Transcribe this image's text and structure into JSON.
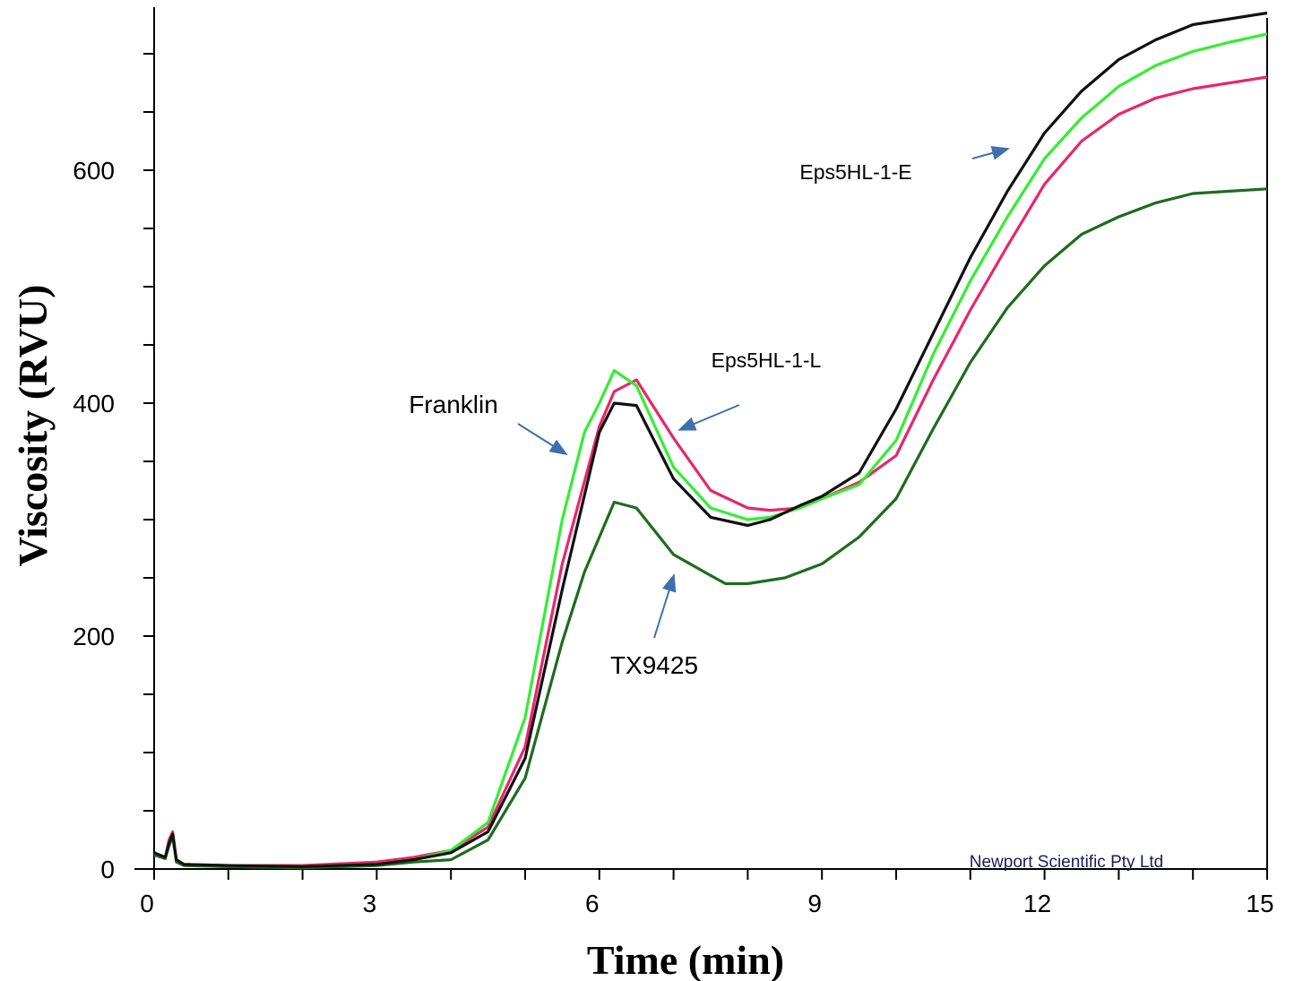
{
  "chart_data": {
    "type": "line",
    "xlabel": "Time (min)",
    "ylabel": "Viscosity (RVU)",
    "xlim": [
      0,
      15
    ],
    "ylim": [
      0,
      740
    ],
    "x_ticks": [
      0,
      3,
      6,
      9,
      12,
      15
    ],
    "y_ticks": [
      0,
      200,
      400,
      600
    ],
    "grid": false,
    "legend": "none",
    "watermark": "Newport Scientific Pty Ltd",
    "annotations": [
      {
        "text": "Eps5HL-1-E",
        "series": "Eps5HL-1-E"
      },
      {
        "text": "Eps5HL-1-L",
        "series": "Eps5HL-1-L"
      },
      {
        "text": "Franklin",
        "series": "Franklin"
      },
      {
        "text": "TX9425",
        "series": "TX9425"
      }
    ],
    "series": [
      {
        "name": "Eps5HL-1-E",
        "color": "#111111",
        "x": [
          0,
          0.15,
          0.2,
          0.25,
          0.3,
          0.4,
          1,
          2,
          3,
          3.5,
          4,
          4.5,
          5,
          5.5,
          6,
          6.2,
          6.5,
          7,
          7.5,
          8,
          8.3,
          8.7,
          9,
          9.5,
          10,
          10.5,
          11,
          11.5,
          12,
          12.5,
          13,
          13.5,
          14,
          14.5,
          15
        ],
        "y": [
          14,
          10,
          22,
          30,
          8,
          4,
          3,
          2,
          4,
          8,
          14,
          32,
          95,
          240,
          375,
          400,
          398,
          335,
          302,
          295,
          300,
          312,
          320,
          340,
          395,
          460,
          525,
          582,
          632,
          668,
          695,
          712,
          725,
          730,
          735
        ]
      },
      {
        "name": "Eps5HL-1-L",
        "color": "#e8266c",
        "x": [
          0,
          0.15,
          0.2,
          0.25,
          0.3,
          0.4,
          1,
          2,
          3,
          3.5,
          4,
          4.5,
          5,
          5.5,
          6,
          6.2,
          6.5,
          7,
          7.5,
          8,
          8.3,
          8.7,
          9,
          9.5,
          10,
          10.5,
          11,
          11.5,
          12,
          12.5,
          13,
          13.5,
          14,
          14.5,
          15
        ],
        "y": [
          14,
          10,
          25,
          32,
          8,
          4,
          3,
          3,
          6,
          10,
          16,
          36,
          105,
          262,
          380,
          410,
          420,
          370,
          325,
          310,
          308,
          310,
          318,
          332,
          355,
          420,
          480,
          535,
          588,
          625,
          648,
          662,
          670,
          675,
          680
        ]
      },
      {
        "name": "Franklin",
        "color": "#33ee33",
        "x": [
          0,
          0.15,
          0.2,
          0.25,
          0.3,
          0.4,
          1,
          2,
          3,
          3.5,
          4,
          4.5,
          5,
          5.5,
          5.8,
          6,
          6.2,
          6.5,
          7,
          7.5,
          8,
          8.3,
          8.7,
          9,
          9.5,
          10,
          10.5,
          11,
          11.5,
          12,
          12.5,
          13,
          13.5,
          14,
          14.5,
          15
        ],
        "y": [
          14,
          10,
          22,
          30,
          8,
          4,
          3,
          2,
          4,
          8,
          16,
          40,
          130,
          300,
          375,
          400,
          428,
          415,
          345,
          310,
          300,
          302,
          310,
          318,
          330,
          368,
          442,
          505,
          560,
          610,
          645,
          672,
          690,
          702,
          710,
          717
        ]
      },
      {
        "name": "TX9425",
        "color": "#1f6b1f",
        "x": [
          0,
          0.15,
          0.2,
          0.25,
          0.3,
          0.4,
          1,
          2,
          3,
          3.5,
          4,
          4.5,
          5,
          5.5,
          5.8,
          6,
          6.2,
          6.5,
          7,
          7.5,
          7.7,
          8,
          8.5,
          9,
          9.5,
          10,
          10.5,
          11,
          11.5,
          12,
          12.5,
          13,
          13.5,
          14,
          14.5,
          15
        ],
        "y": [
          12,
          9,
          20,
          28,
          6,
          3,
          2,
          1,
          3,
          6,
          8,
          25,
          78,
          195,
          255,
          285,
          315,
          310,
          270,
          252,
          245,
          245,
          250,
          262,
          285,
          318,
          378,
          435,
          482,
          518,
          545,
          560,
          572,
          580,
          582,
          584
        ]
      }
    ]
  }
}
